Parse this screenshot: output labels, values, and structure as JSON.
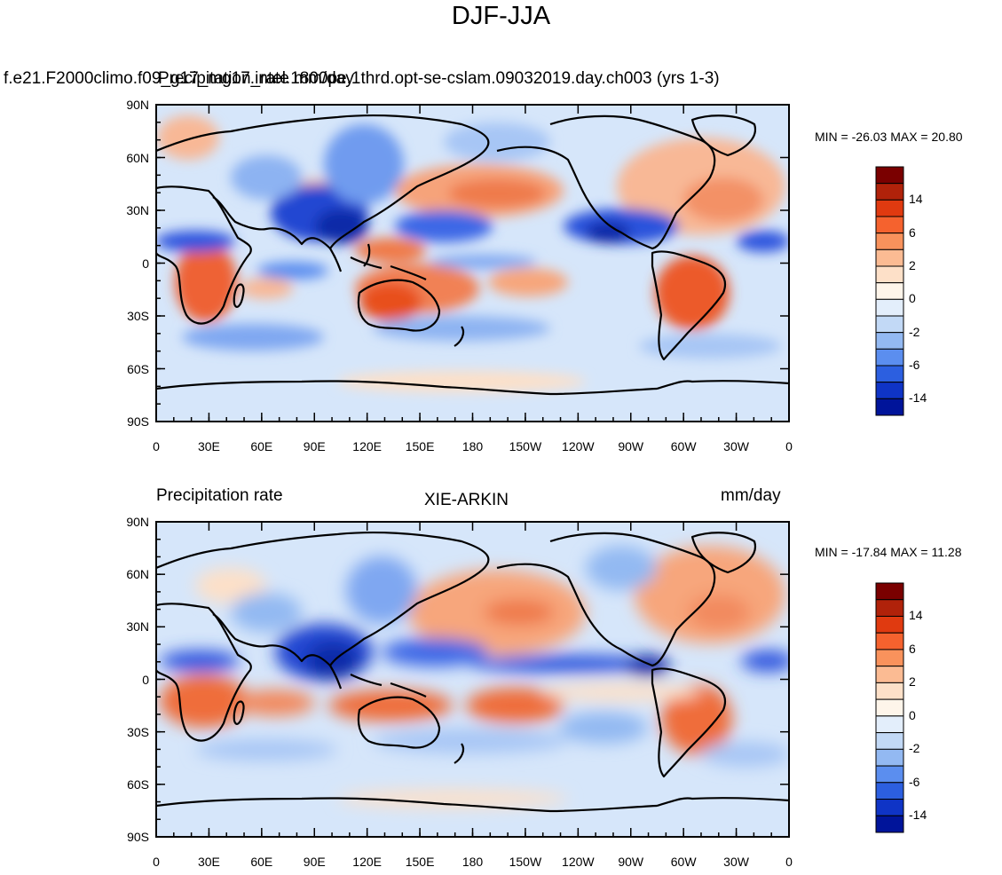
{
  "title": "DJF-JJA",
  "top_panel": {
    "left_string": "f.e21.F2000climo.f09_g17_mg17.intel.1800pe.1thrd.opt-se-cslam.09032019.day.ch003 (yrs 1-3)",
    "overlay_string": "Precipitation_rate mm/day",
    "min_max": "MIN = -26.03 MAX =  20.80"
  },
  "bottom_panel": {
    "left_string": "Precipitation rate",
    "center_string": "XIE-ARKIN",
    "right_string": "mm/day",
    "min_max": "MIN = -17.84 MAX =  11.28"
  },
  "axes": {
    "y_ticks": [
      "90N",
      "60N",
      "30N",
      "0",
      "30S",
      "60S",
      "90S"
    ],
    "x_ticks": [
      "0",
      "30E",
      "60E",
      "90E",
      "120E",
      "150E",
      "180",
      "150W",
      "120W",
      "90W",
      "60W",
      "30W",
      "0"
    ]
  },
  "colorbar": {
    "labels": [
      "14",
      "6",
      "2",
      "0",
      "-2",
      "-6",
      "-14"
    ],
    "colors": [
      "#7a0000",
      "#b0220a",
      "#e03a10",
      "#f5622e",
      "#f9925c",
      "#fbbb93",
      "#fde0c8",
      "#fef5ea",
      "#e3eefb",
      "#c2d9f6",
      "#93b9f2",
      "#5b8eef",
      "#2c5fe0",
      "#0f34c6",
      "#00149a"
    ]
  },
  "colors": {
    "ocean_base": "#d6e6fa",
    "wet": "#2a55d8",
    "dry": "#ef5a2a",
    "coast": "#000000"
  }
}
